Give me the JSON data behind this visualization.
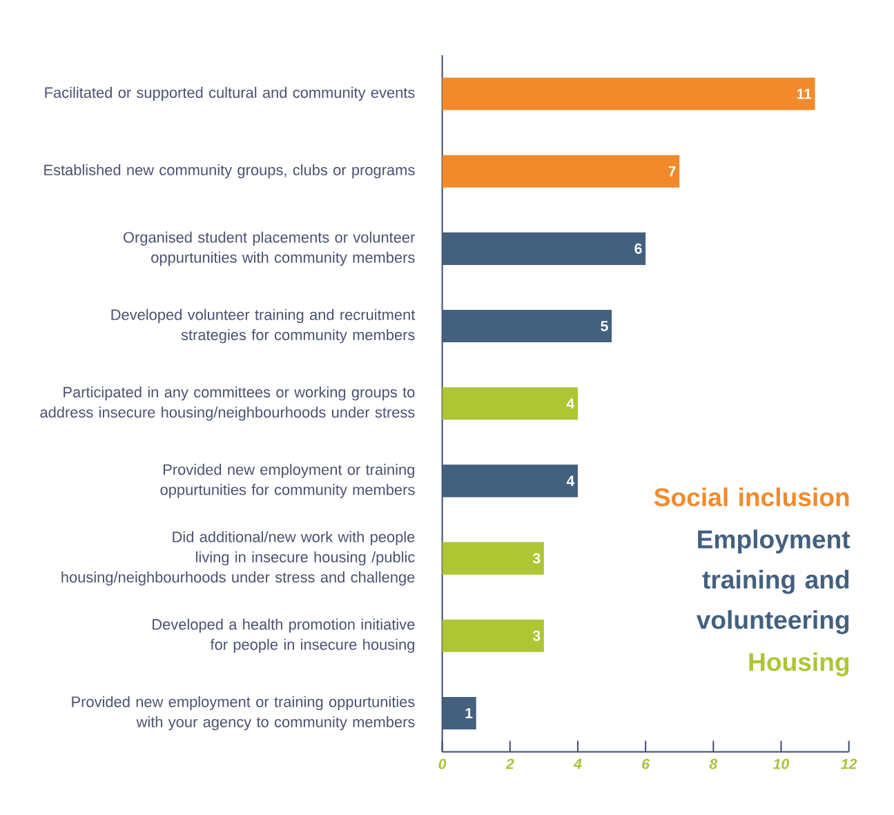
{
  "chart_data": {
    "type": "bar",
    "orientation": "horizontal",
    "categories": [
      "Facilitated or supported cultural and community events",
      "Established new community groups, clubs or programs",
      "Organised student placements or volunteer oppurtunities with community members",
      "Developed volunteer training and recruitment strategies for community members",
      "Participated in any committees or working groups to address insecure housing/neighbourhoods under stress",
      "Provided new employment or training oppurtunities for community members",
      "Did additional/new work with people living in insecure housing /public housing/neighbourhoods under stress and challenge",
      "Developed a health promotion initiative for people in insecure housing",
      "Provided new employment or training oppurtunities with your agency to community members"
    ],
    "series": [
      {
        "name": "Social inclusion",
        "color": "#f28a2c",
        "values": [
          11,
          7,
          null,
          null,
          null,
          null,
          null,
          null,
          null
        ]
      },
      {
        "name": "Employment training and volunteering",
        "color": "#43607f",
        "values": [
          null,
          null,
          6,
          5,
          null,
          4,
          null,
          null,
          1
        ]
      },
      {
        "name": "Housing",
        "color": "#aec534",
        "values": [
          null,
          null,
          null,
          null,
          4,
          null,
          3,
          3,
          null
        ]
      }
    ],
    "xlim": [
      0,
      12
    ],
    "xticks": [
      0,
      2,
      4,
      6,
      8,
      10,
      12
    ],
    "data_labels": true,
    "legend": "bottom right"
  }
}
